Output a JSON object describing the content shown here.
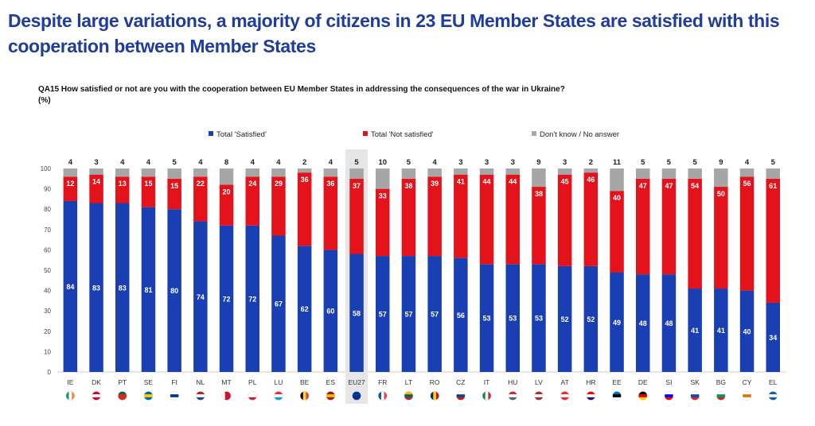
{
  "headline": "Despite large variations, a majority of citizens in 23 EU Member States are satisfied with this cooperation between Member States",
  "question": "QA15  How satisfied or not are you with the cooperation between EU Member States in addressing the consequences of the war in Ukraine?",
  "unit": "(%)",
  "colors": {
    "satisfied": "#1a3fb3",
    "not_satisfied": "#e3121b",
    "dont_know": "#a6a6a6",
    "highlight": "#e6e6e6"
  },
  "chart_data": {
    "type": "bar",
    "stacked": true,
    "legend_position": "top",
    "ylim": [
      0,
      100
    ],
    "yticks": [
      0,
      10,
      20,
      30,
      40,
      50,
      60,
      70,
      80,
      90,
      100
    ],
    "highlight_category": "EU27",
    "categories": [
      "IE",
      "DK",
      "PT",
      "SE",
      "FI",
      "NL",
      "MT",
      "PL",
      "LU",
      "BE",
      "ES",
      "EU27",
      "FR",
      "LT",
      "RO",
      "CZ",
      "IT",
      "HU",
      "LV",
      "AT",
      "HR",
      "EE",
      "DE",
      "SI",
      "SK",
      "BG",
      "CY",
      "EL"
    ],
    "series": [
      {
        "name": "Total 'Satisfied'",
        "values": [
          84,
          83,
          83,
          81,
          80,
          74,
          72,
          72,
          67,
          62,
          60,
          58,
          57,
          57,
          57,
          56,
          53,
          53,
          53,
          52,
          52,
          49,
          48,
          48,
          41,
          41,
          40,
          34
        ]
      },
      {
        "name": "Total 'Not satisfied'",
        "values": [
          12,
          14,
          13,
          15,
          15,
          22,
          20,
          24,
          29,
          36,
          36,
          37,
          33,
          38,
          39,
          41,
          44,
          44,
          38,
          45,
          46,
          40,
          47,
          47,
          54,
          50,
          56,
          61
        ]
      },
      {
        "name": "Don't know / No answer",
        "values": [
          4,
          3,
          4,
          4,
          5,
          4,
          8,
          4,
          4,
          2,
          4,
          5,
          10,
          5,
          4,
          3,
          3,
          3,
          9,
          3,
          2,
          11,
          5,
          5,
          5,
          9,
          4,
          5
        ]
      }
    ]
  }
}
